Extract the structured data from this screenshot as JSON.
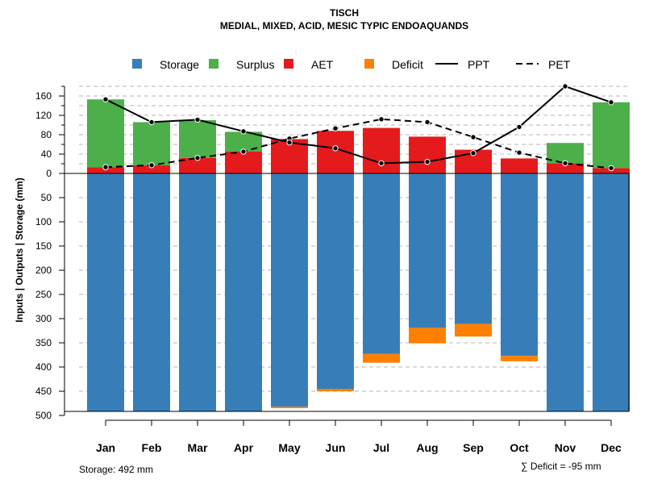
{
  "chart_data": {
    "type": "bar",
    "title": "TISCH",
    "subtitle": "MEDIAL, MIXED, ACID, MESIC TYPIC ENDOAQUANDS",
    "ylabel": "Inputs | Outputs | Storage    (mm)",
    "categories": [
      "Jan",
      "Feb",
      "Mar",
      "Apr",
      "May",
      "Jun",
      "Jul",
      "Aug",
      "Sep",
      "Oct",
      "Nov",
      "Dec"
    ],
    "ylim_upper": [
      0,
      180
    ],
    "ylim_lower": [
      0,
      500
    ],
    "upper_ticks": [
      0,
      20,
      40,
      60,
      80,
      100,
      120,
      140,
      160
    ],
    "upper_labels": [
      0,
      40,
      80,
      120,
      160
    ],
    "lower_ticks": [
      50,
      100,
      150,
      200,
      250,
      300,
      350,
      400,
      450,
      500
    ],
    "series": [
      {
        "name": "Storage",
        "color": "#377EB8",
        "values": [
          492,
          492,
          492,
          492,
          482,
          445,
          373,
          319,
          311,
          377,
          492,
          492
        ]
      },
      {
        "name": "Surplus",
        "color": "#4DAF4A",
        "values": [
          140,
          89,
          78,
          41,
          0,
          0,
          0,
          0,
          0,
          0,
          42,
          136
        ]
      },
      {
        "name": "AET",
        "color": "#E41A1C",
        "values": [
          13,
          17,
          32,
          45,
          71,
          88,
          94,
          76,
          49,
          31,
          21,
          11
        ]
      },
      {
        "name": "Deficit",
        "color": "#FF7F00",
        "values": [
          0,
          0,
          0,
          0,
          -3,
          -5,
          -18,
          -32,
          -26,
          -11,
          0,
          0
        ]
      },
      {
        "name": "PPT",
        "color": "#000000",
        "values": [
          153,
          106,
          111,
          87,
          64,
          52,
          21,
          24,
          42,
          96,
          180,
          147
        ]
      },
      {
        "name": "PET",
        "color": "#000000",
        "values": [
          13,
          17,
          32,
          45,
          72,
          93,
          112,
          106,
          75,
          43,
          21,
          11
        ]
      }
    ],
    "legend": [
      "Storage",
      "Surplus",
      "AET",
      "Deficit",
      "PPT",
      "PET"
    ],
    "legend_position": "top",
    "storage_label": "Storage: 492 mm",
    "deficit_label": "∑ Deficit = -95 mm"
  }
}
